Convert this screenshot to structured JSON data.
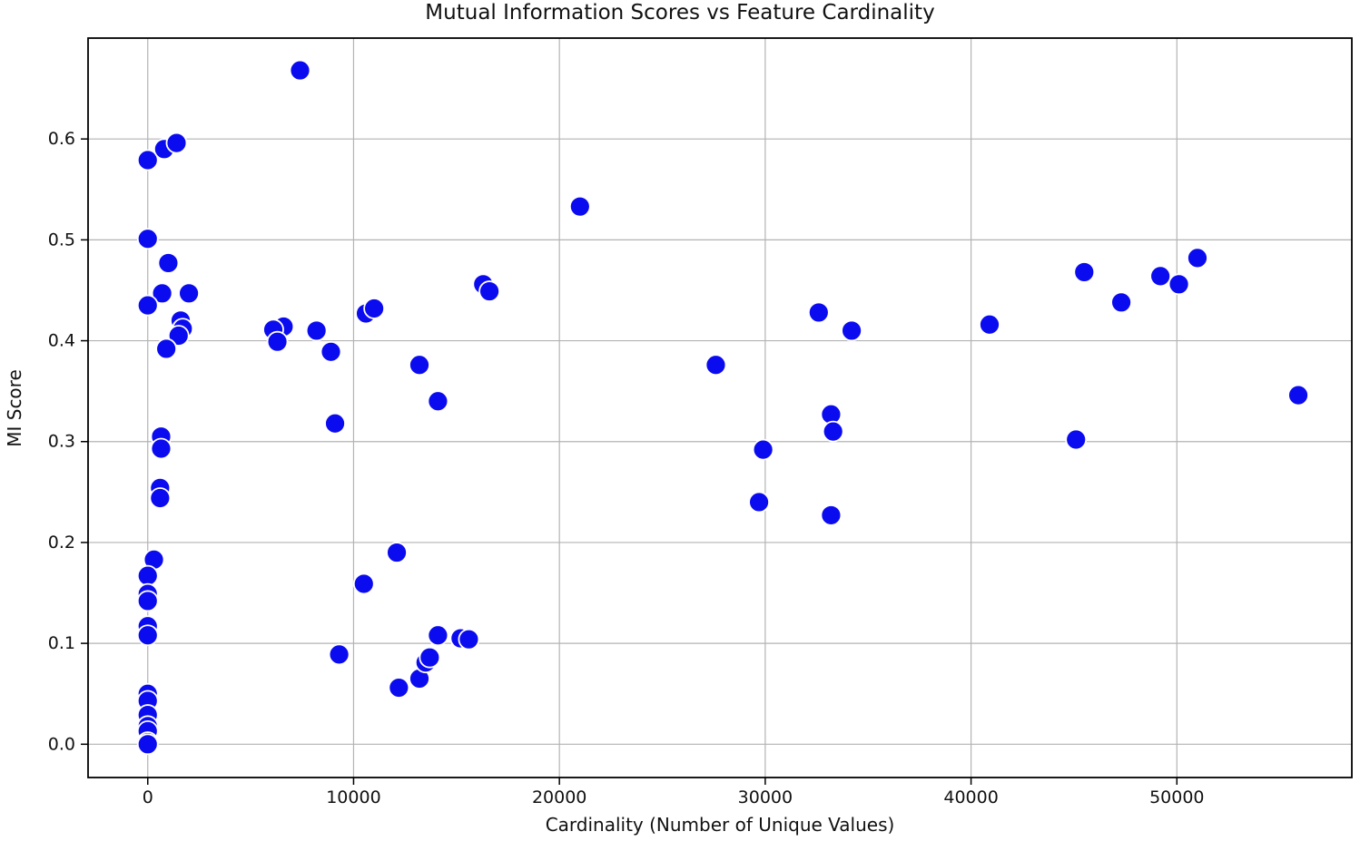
{
  "chart_data": {
    "type": "scatter",
    "title": "Mutual Information Scores vs Feature Cardinality",
    "xlabel": "Cardinality (Number of Unique Values)",
    "ylabel": "MI Score",
    "xlim": [
      -2900,
      58500
    ],
    "ylim": [
      -0.033,
      0.7
    ],
    "xticks": [
      0,
      10000,
      20000,
      30000,
      40000,
      50000
    ],
    "yticks": [
      0.0,
      0.1,
      0.2,
      0.3,
      0.4,
      0.5,
      0.6
    ],
    "grid": true,
    "legend": null,
    "marker": {
      "radius_px": 11,
      "color": "#0b0bf0",
      "edge_color": "#ffffff"
    },
    "colors": {
      "point": "#0b0bf0",
      "gridline": "#b3b3b3",
      "axis_frame": "#000000",
      "text": "#111111",
      "background": "#ffffff"
    },
    "points": [
      [
        0,
        0.579
      ],
      [
        800,
        0.59
      ],
      [
        1400,
        0.596
      ],
      [
        0,
        0.501
      ],
      [
        1000,
        0.477
      ],
      [
        700,
        0.447
      ],
      [
        2000,
        0.447
      ],
      [
        0,
        0.435
      ],
      [
        1600,
        0.42
      ],
      [
        1700,
        0.412
      ],
      [
        1500,
        0.405
      ],
      [
        900,
        0.392
      ],
      [
        650,
        0.305
      ],
      [
        650,
        0.293
      ],
      [
        600,
        0.254
      ],
      [
        600,
        0.244
      ],
      [
        300,
        0.183
      ],
      [
        0,
        0.167
      ],
      [
        0,
        0.149
      ],
      [
        0,
        0.142
      ],
      [
        0,
        0.117
      ],
      [
        0,
        0.108
      ],
      [
        0,
        0.05
      ],
      [
        0,
        0.043
      ],
      [
        0,
        0.029
      ],
      [
        0,
        0.018
      ],
      [
        0,
        0.013
      ],
      [
        0,
        0.002
      ],
      [
        0,
        0.0
      ],
      [
        7400,
        0.668
      ],
      [
        6600,
        0.414
      ],
      [
        6100,
        0.411
      ],
      [
        6300,
        0.399
      ],
      [
        8200,
        0.41
      ],
      [
        8900,
        0.389
      ],
      [
        10600,
        0.427
      ],
      [
        11000,
        0.432
      ],
      [
        16300,
        0.456
      ],
      [
        16600,
        0.449
      ],
      [
        9100,
        0.318
      ],
      [
        13200,
        0.376
      ],
      [
        14100,
        0.34
      ],
      [
        12100,
        0.19
      ],
      [
        10500,
        0.159
      ],
      [
        9300,
        0.089
      ],
      [
        12200,
        0.056
      ],
      [
        13200,
        0.065
      ],
      [
        13500,
        0.081
      ],
      [
        13700,
        0.086
      ],
      [
        14100,
        0.108
      ],
      [
        15200,
        0.105
      ],
      [
        15600,
        0.104
      ],
      [
        21000,
        0.533
      ],
      [
        27600,
        0.376
      ],
      [
        29900,
        0.292
      ],
      [
        29700,
        0.24
      ],
      [
        32600,
        0.428
      ],
      [
        34200,
        0.41
      ],
      [
        33200,
        0.327
      ],
      [
        33300,
        0.31
      ],
      [
        33200,
        0.227
      ],
      [
        40900,
        0.416
      ],
      [
        45500,
        0.468
      ],
      [
        47300,
        0.438
      ],
      [
        49200,
        0.464
      ],
      [
        50100,
        0.456
      ],
      [
        51000,
        0.482
      ],
      [
        45100,
        0.302
      ],
      [
        55900,
        0.346
      ]
    ]
  }
}
